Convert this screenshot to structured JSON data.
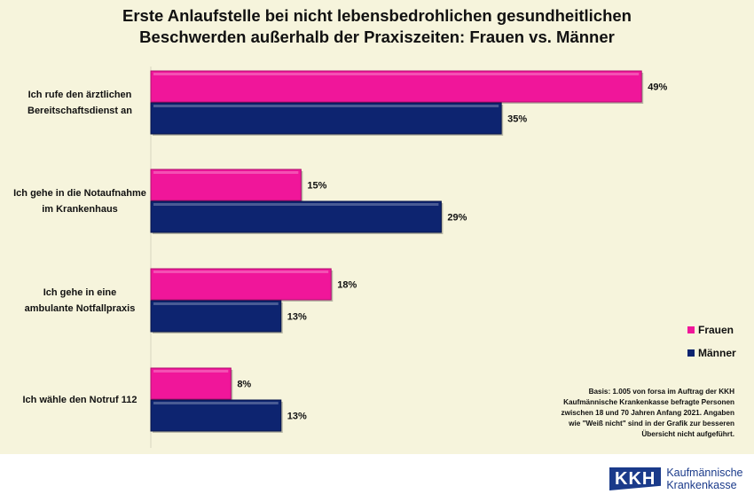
{
  "chart_data": {
    "type": "bar",
    "orientation": "horizontal",
    "title": [
      "Erste Anlaufstelle bei nicht lebensbedrohlichen gesundheitlichen",
      "Beschwerden außerhalb der Praxiszeiten: Frauen vs. Männer"
    ],
    "categories": [
      [
        "Ich rufe den ärztlichen",
        "Bereitschaftsdienst an"
      ],
      [
        "Ich gehe in die Notaufnahme",
        "im Krankenhaus"
      ],
      [
        "Ich gehe in eine",
        "ambulante Notfallpraxis"
      ],
      [
        "Ich wähle den Notruf 112"
      ]
    ],
    "series": [
      {
        "name": "Frauen",
        "values": [
          49,
          15,
          18,
          8
        ],
        "labels": [
          "49%",
          "15%",
          "18%",
          "8%"
        ],
        "color": "#f0169a"
      },
      {
        "name": "Männer",
        "values": [
          35,
          29,
          13,
          13
        ],
        "labels": [
          "35%",
          "29%",
          "13%",
          "13%"
        ],
        "color": "#0d2470"
      }
    ],
    "xlim": [
      0,
      50
    ],
    "grid": false,
    "legend": "right"
  },
  "note": "Basis: 1.005 von forsa im Auftrag der KKH Kaufmännische Krankenkasse befragte Personen zwischen 18 und 70 Jahren Anfang 2021. Angaben wie \"Weiß nicht\" sind in der Grafik zur besseren Übersicht nicht aufgeführt.",
  "logo": {
    "mark": "KKH",
    "line1": "Kaufmännische",
    "line2": "Krankenkasse"
  }
}
